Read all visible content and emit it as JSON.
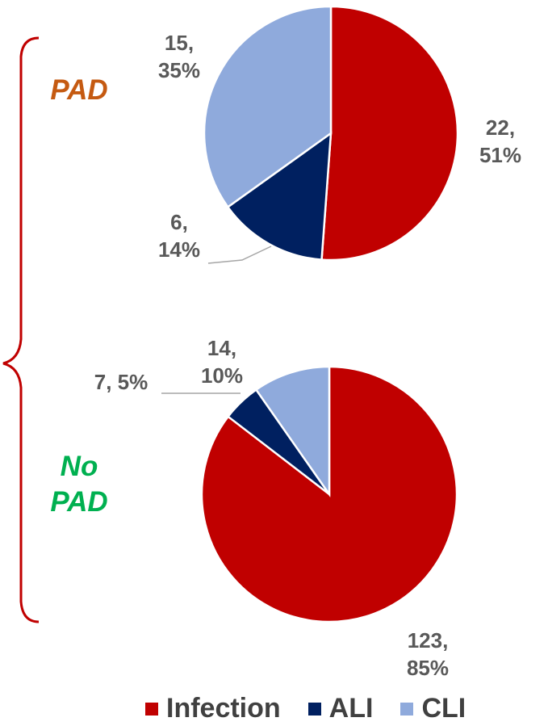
{
  "chart_data": [
    {
      "type": "pie",
      "title": "PAD",
      "title_color": "#c55a11",
      "categories": [
        "Infection",
        "ALI",
        "CLI"
      ],
      "colors": [
        "#c00000",
        "#002060",
        "#8faadc"
      ],
      "values": [
        22,
        6,
        15
      ],
      "value_labels": [
        "22,\n51%",
        "6,\n14%",
        "15,\n35%"
      ]
    },
    {
      "type": "pie",
      "title": "No PAD",
      "title_color": "#00b050",
      "categories": [
        "Infection",
        "ALI",
        "CLI"
      ],
      "colors": [
        "#c00000",
        "#002060",
        "#8faadc"
      ],
      "values": [
        123,
        7,
        14
      ],
      "value_labels": [
        "123,\n85%",
        "7, 5%",
        "14,\n10%"
      ]
    }
  ]
}
